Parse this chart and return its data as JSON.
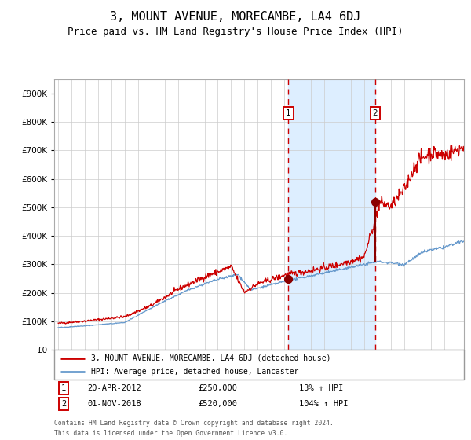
{
  "title": "3, MOUNT AVENUE, MORECAMBE, LA4 6DJ",
  "subtitle": "Price paid vs. HM Land Registry's House Price Index (HPI)",
  "title_fontsize": 11,
  "subtitle_fontsize": 9,
  "red_label": "3, MOUNT AVENUE, MORECAMBE, LA4 6DJ (detached house)",
  "blue_label": "HPI: Average price, detached house, Lancaster",
  "annotation1_date": "20-APR-2012",
  "annotation1_price": "£250,000",
  "annotation1_hpi": "13% ↑ HPI",
  "annotation2_date": "01-NOV-2018",
  "annotation2_price": "£520,000",
  "annotation2_hpi": "104% ↑ HPI",
  "footer1": "Contains HM Land Registry data © Crown copyright and database right 2024.",
  "footer2": "This data is licensed under the Open Government Licence v3.0.",
  "ylim": [
    0,
    950000
  ],
  "xlim_start": 1994.7,
  "xlim_end": 2025.5,
  "sale1_x": 2012.3,
  "sale1_y": 250000,
  "sale2_x": 2018.83,
  "sale2_y": 520000,
  "background_color": "#ffffff",
  "plot_bg_color": "#ffffff",
  "shaded_region_color": "#ddeeff",
  "grid_color": "#cccccc",
  "red_color": "#cc0000",
  "dark_red_color": "#8b0000",
  "blue_color": "#6699cc",
  "dashed_color": "#cc0000",
  "box_edge_color": "#cc0000",
  "legend_edge_color": "#999999",
  "spine_color": "#aaaaaa"
}
